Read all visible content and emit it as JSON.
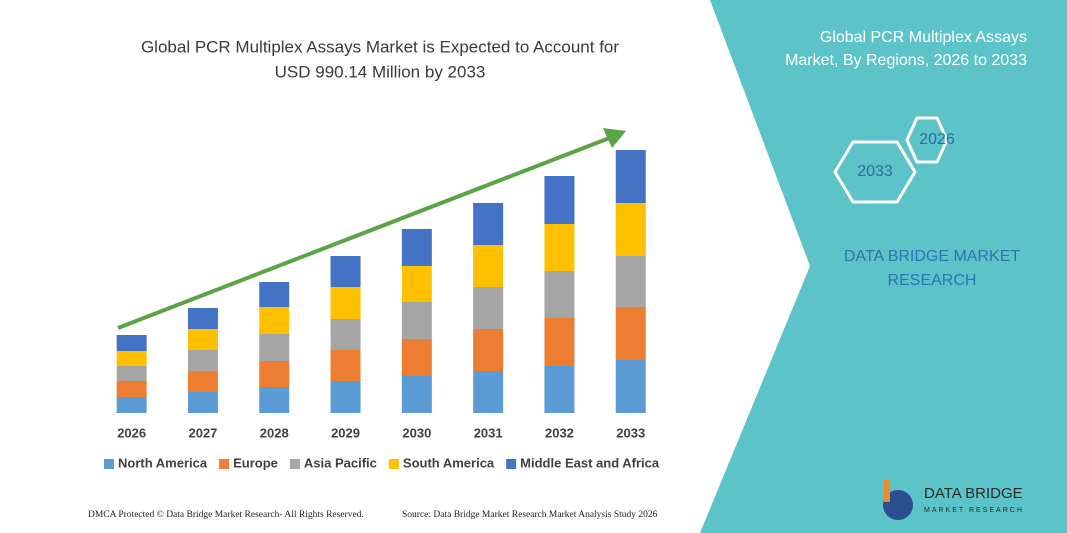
{
  "chart_data": {
    "type": "stacked_bar",
    "title": [
      "Global PCR Multiplex Assays Market is Expected to Account for",
      "USD 990.14 Million by 2033"
    ],
    "categories": [
      "2026",
      "2027",
      "2028",
      "2029",
      "2030",
      "2031",
      "2032",
      "2033"
    ],
    "ylim": [
      0,
      270
    ],
    "series": [
      {
        "name": "North America",
        "color": "#5b9bd5",
        "values": [
          16,
          21,
          26,
          32,
          37,
          42,
          47,
          53
        ]
      },
      {
        "name": "Europe",
        "color": "#ed7d31",
        "values": [
          16,
          21,
          26,
          31,
          37,
          42,
          48,
          53
        ]
      },
      {
        "name": "Asia Pacific",
        "color": "#a5a5a5",
        "values": [
          15,
          21,
          27,
          31,
          37,
          42,
          47,
          51
        ]
      },
      {
        "name": "South America",
        "color": "#ffc000",
        "values": [
          15,
          21,
          27,
          32,
          36,
          42,
          47,
          53
        ]
      },
      {
        "name": "Middle East and Africa",
        "color": "#4472c4",
        "values": [
          16,
          21,
          25,
          31,
          37,
          42,
          48,
          53
        ]
      }
    ]
  },
  "panel": {
    "title": [
      "Global PCR Multiplex Assays",
      "Market, By Regions, 2026 to 2033"
    ],
    "hexagons": [
      "2026",
      "2033"
    ],
    "brand": [
      "DATA BRIDGE MARKET",
      "RESEARCH"
    ],
    "logo": [
      "DATA BRIDGE",
      "MARKET RESEARCH"
    ]
  },
  "footer": {
    "left": "DMCA Protected © Data Bridge Market Research- All Rights Reserved.",
    "right": "Source: Data Bridge Market Research Market Analysis Study 2026"
  }
}
